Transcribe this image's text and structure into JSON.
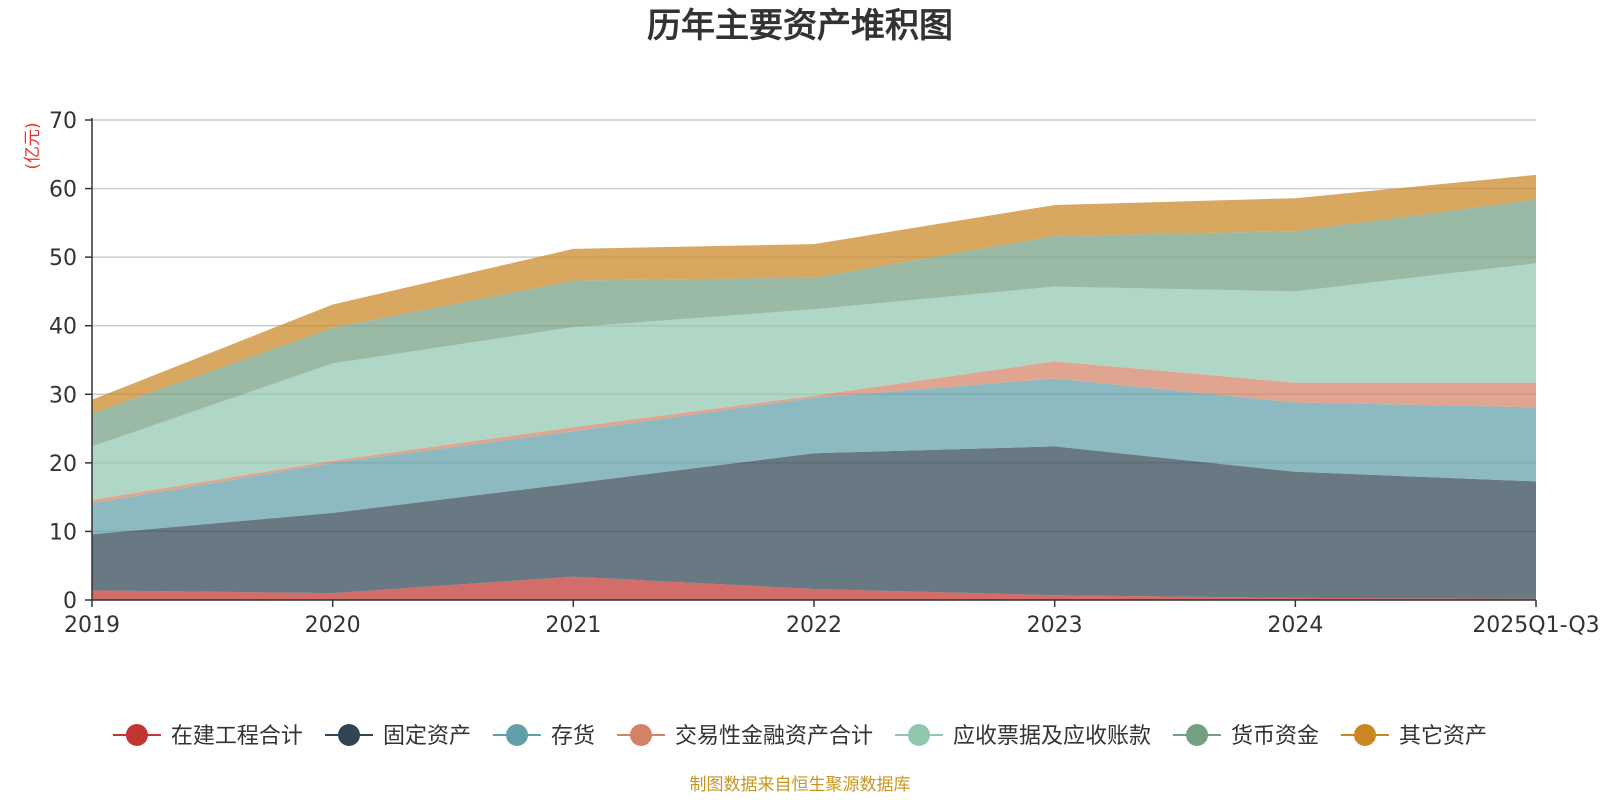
{
  "chart_data": {
    "type": "area",
    "stacked": true,
    "title": "历年主要资产堆积图",
    "ylabel": "(亿元)",
    "xlabel": "",
    "ylim": [
      0,
      70
    ],
    "yticks": [
      0,
      10,
      20,
      30,
      40,
      50,
      60,
      70
    ],
    "categories": [
      "2019",
      "2020",
      "2021",
      "2022",
      "2023",
      "2024",
      "2025Q1-Q3"
    ],
    "series": [
      {
        "name": "在建工程合计",
        "color": "#c23531",
        "values": [
          1.4,
          1.0,
          3.4,
          1.6,
          0.7,
          0.3,
          0.2
        ]
      },
      {
        "name": "固定资产",
        "color": "#2f4554",
        "values": [
          8.2,
          11.7,
          13.6,
          19.8,
          21.7,
          18.4,
          17.1
        ]
      },
      {
        "name": "存货",
        "color": "#61a0a8",
        "values": [
          4.5,
          7.3,
          7.6,
          8.1,
          9.9,
          10.1,
          10.8
        ]
      },
      {
        "name": "交易性金融资产合计",
        "color": "#d48265",
        "values": [
          0.5,
          0.3,
          0.6,
          0.3,
          2.5,
          2.9,
          3.6
        ]
      },
      {
        "name": "应收票据及应收账款",
        "color": "#91c7ae",
        "values": [
          7.8,
          14.2,
          14.6,
          12.6,
          10.9,
          13.3,
          17.4
        ]
      },
      {
        "name": "货币资金",
        "color": "#749f83",
        "values": [
          4.8,
          5.2,
          6.8,
          4.6,
          7.4,
          8.8,
          9.3
        ]
      },
      {
        "name": "其它资产",
        "color": "#ca8622",
        "values": [
          2.0,
          3.4,
          4.6,
          4.9,
          4.5,
          4.8,
          3.6
        ]
      }
    ]
  },
  "source_note": "制图数据来自恒生聚源数据库",
  "colors": {
    "title": "#333333",
    "unit": "#e8322e",
    "source": "#c8961e",
    "grid": "#cccccc",
    "axis": "#333333"
  }
}
